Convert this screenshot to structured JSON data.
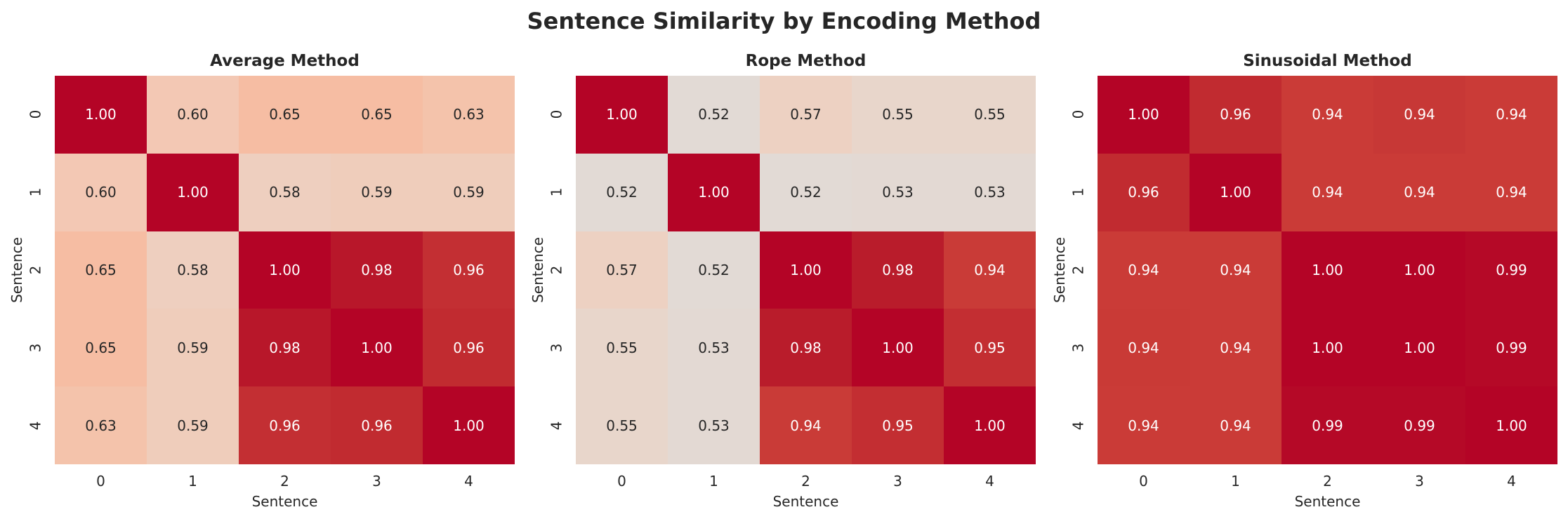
{
  "chart_data": {
    "type": "heatmap",
    "title": "Sentence Similarity by Encoding Method",
    "colormap": "coolwarm",
    "value_format": "0.00",
    "panels": [
      {
        "title": "Average Method",
        "xlabel": "Sentence",
        "ylabel": "Sentence",
        "x_ticks": [
          "0",
          "1",
          "2",
          "3",
          "4"
        ],
        "y_ticks": [
          "0",
          "1",
          "2",
          "3",
          "4"
        ],
        "values": [
          [
            1.0,
            0.6,
            0.65,
            0.65,
            0.63
          ],
          [
            0.6,
            1.0,
            0.58,
            0.59,
            0.59
          ],
          [
            0.65,
            0.58,
            1.0,
            0.98,
            0.96
          ],
          [
            0.65,
            0.59,
            0.98,
            1.0,
            0.96
          ],
          [
            0.63,
            0.59,
            0.96,
            0.96,
            1.0
          ]
        ],
        "labels": [
          [
            "1.00",
            "0.60",
            "0.65",
            "0.65",
            "0.63"
          ],
          [
            "0.60",
            "1.00",
            "0.58",
            "0.59",
            "0.59"
          ],
          [
            "0.65",
            "0.58",
            "1.00",
            "0.98",
            "0.96"
          ],
          [
            "0.65",
            "0.59",
            "0.98",
            "1.00",
            "0.96"
          ],
          [
            "0.63",
            "0.59",
            "0.96",
            "0.96",
            "1.00"
          ]
        ],
        "colors": [
          [
            "#b40426",
            "#f3c8b4",
            "#f6bda3",
            "#f6bda3",
            "#f4c3ab"
          ],
          [
            "#f3c8b4",
            "#b40426",
            "#eecfbf",
            "#efcdbb",
            "#efcdbb"
          ],
          [
            "#f6bda3",
            "#eecfbf",
            "#b40426",
            "#b8172a",
            "#c32f33"
          ],
          [
            "#f6bda3",
            "#efcdbb",
            "#b8172a",
            "#b40426",
            "#c12b30"
          ],
          [
            "#f4c3ab",
            "#efcdbb",
            "#c32f33",
            "#c12b30",
            "#b40426"
          ]
        ]
      },
      {
        "title": "Rope Method",
        "xlabel": "Sentence",
        "ylabel": "Sentence",
        "x_ticks": [
          "0",
          "1",
          "2",
          "3",
          "4"
        ],
        "y_ticks": [
          "0",
          "1",
          "2",
          "3",
          "4"
        ],
        "values": [
          [
            1.0,
            0.52,
            0.57,
            0.55,
            0.55
          ],
          [
            0.52,
            1.0,
            0.52,
            0.53,
            0.53
          ],
          [
            0.57,
            0.52,
            1.0,
            0.98,
            0.94
          ],
          [
            0.55,
            0.53,
            0.98,
            1.0,
            0.95
          ],
          [
            0.55,
            0.53,
            0.94,
            0.95,
            1.0
          ]
        ],
        "labels": [
          [
            "1.00",
            "0.52",
            "0.57",
            "0.55",
            "0.55"
          ],
          [
            "0.52",
            "1.00",
            "0.52",
            "0.53",
            "0.53"
          ],
          [
            "0.57",
            "0.52",
            "1.00",
            "0.98",
            "0.94"
          ],
          [
            "0.55",
            "0.53",
            "0.98",
            "1.00",
            "0.95"
          ],
          [
            "0.55",
            "0.53",
            "0.94",
            "0.95",
            "1.00"
          ]
        ],
        "colors": [
          [
            "#b40426",
            "#e2dad5",
            "#edd1c2",
            "#e8d6cb",
            "#e8d6cb"
          ],
          [
            "#e2dad5",
            "#b40426",
            "#e2dad5",
            "#e3d9d3",
            "#e3d9d3"
          ],
          [
            "#edd1c2",
            "#e2dad5",
            "#b40426",
            "#b91c2b",
            "#c93b37"
          ],
          [
            "#e8d6cb",
            "#e3d9d3",
            "#b91c2b",
            "#b40426",
            "#c32e32"
          ],
          [
            "#e8d6cb",
            "#e3d9d3",
            "#c93b37",
            "#c32e32",
            "#b40426"
          ]
        ]
      },
      {
        "title": "Sinusoidal Method",
        "xlabel": "Sentence",
        "ylabel": "Sentence",
        "x_ticks": [
          "0",
          "1",
          "2",
          "3",
          "4"
        ],
        "y_ticks": [
          "0",
          "1",
          "2",
          "3",
          "4"
        ],
        "values": [
          [
            1.0,
            0.96,
            0.94,
            0.94,
            0.94
          ],
          [
            0.96,
            1.0,
            0.94,
            0.94,
            0.94
          ],
          [
            0.94,
            0.94,
            1.0,
            1.0,
            0.99
          ],
          [
            0.94,
            0.94,
            1.0,
            1.0,
            0.99
          ],
          [
            0.94,
            0.94,
            0.99,
            0.99,
            1.0
          ]
        ],
        "labels": [
          [
            "1.00",
            "0.96",
            "0.94",
            "0.94",
            "0.94"
          ],
          [
            "0.96",
            "1.00",
            "0.94",
            "0.94",
            "0.94"
          ],
          [
            "0.94",
            "0.94",
            "1.00",
            "1.00",
            "0.99"
          ],
          [
            "0.94",
            "0.94",
            "1.00",
            "1.00",
            "0.99"
          ],
          [
            "0.94",
            "0.94",
            "0.99",
            "0.99",
            "1.00"
          ]
        ],
        "colors": [
          [
            "#b40426",
            "#c12b30",
            "#ca3b37",
            "#c73836",
            "#ca3b37"
          ],
          [
            "#c12b30",
            "#b40426",
            "#ca3b37",
            "#ca3b37",
            "#ca3b37"
          ],
          [
            "#ca3b37",
            "#ca3b37",
            "#b40426",
            "#b40426",
            "#b50927"
          ],
          [
            "#c93a36",
            "#ca3b37",
            "#b40426",
            "#b40426",
            "#b50927"
          ],
          [
            "#ca3b37",
            "#ca3b37",
            "#b50927",
            "#b50927",
            "#b40426"
          ]
        ]
      }
    ],
    "text_colors": {
      "dark_cell": "#ffffff",
      "light_cell": "#262626"
    },
    "colorbar": false,
    "grid": false
  }
}
